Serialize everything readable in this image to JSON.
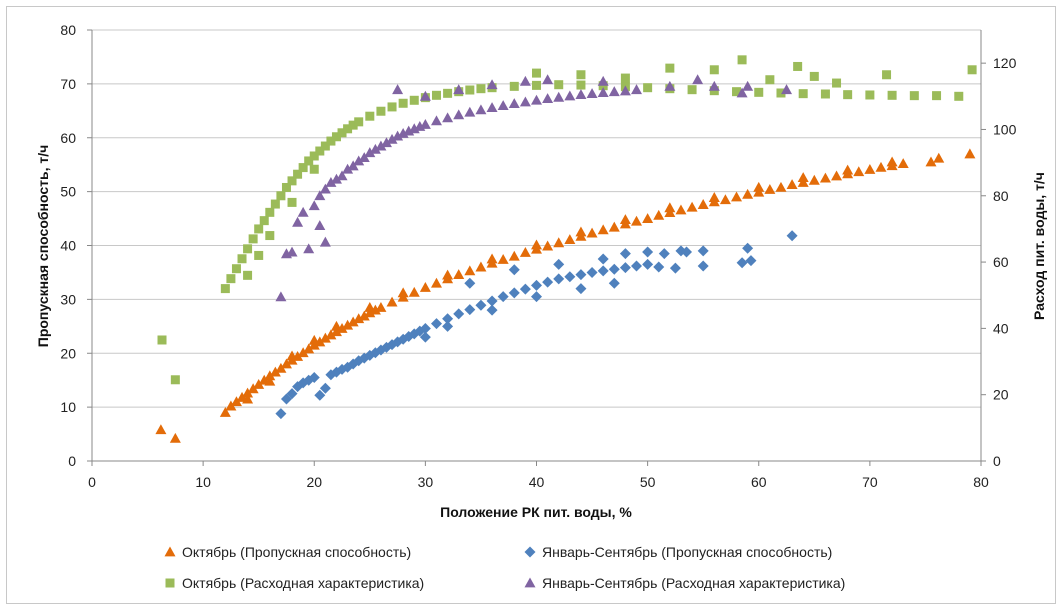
{
  "chart_data": {
    "type": "scatter",
    "xlabel": "Положение РК пит. воды, %",
    "ylabel": "Пропускная способность, т/ч",
    "y2label": "Расход пит. воды, т/ч",
    "xlim": [
      0,
      80
    ],
    "ylim": [
      0,
      80
    ],
    "y2lim": [
      0,
      130
    ],
    "x_ticks": [
      "0",
      "10",
      "20",
      "30",
      "40",
      "50",
      "60",
      "70",
      "80"
    ],
    "y_ticks": [
      "0",
      "10",
      "20",
      "30",
      "40",
      "50",
      "60",
      "70",
      "80"
    ],
    "y2_ticks": [
      "0",
      "20",
      "40",
      "60",
      "80",
      "100",
      "120"
    ],
    "grid": "horizontal",
    "legend_position": "bottom",
    "series": [
      {
        "name": "Октябрь (Пропускная способность)",
        "axis": "left",
        "marker": "triangle",
        "color": "#E36C09",
        "points": [
          [
            6.2,
            5.8
          ],
          [
            7.5,
            4.2
          ],
          [
            12.0,
            9.0
          ],
          [
            12.5,
            10.2
          ],
          [
            13.0,
            11.0
          ],
          [
            13.5,
            11.8
          ],
          [
            14.0,
            12.6
          ],
          [
            14.5,
            13.4
          ],
          [
            15.0,
            14.2
          ],
          [
            15.5,
            15.0
          ],
          [
            16.0,
            15.8
          ],
          [
            16.5,
            16.5
          ],
          [
            17.0,
            17.2
          ],
          [
            17.5,
            18.0
          ],
          [
            18.0,
            18.7
          ],
          [
            18.5,
            19.4
          ],
          [
            19.0,
            20.1
          ],
          [
            19.5,
            20.8
          ],
          [
            20.0,
            21.5
          ],
          [
            20.5,
            22.1
          ],
          [
            21.0,
            22.8
          ],
          [
            21.5,
            23.4
          ],
          [
            22.0,
            24.0
          ],
          [
            22.5,
            24.6
          ],
          [
            23.0,
            25.2
          ],
          [
            23.5,
            25.8
          ],
          [
            24.0,
            26.4
          ],
          [
            24.5,
            26.9
          ],
          [
            25.0,
            27.5
          ],
          [
            25.5,
            28.0
          ],
          [
            26.0,
            28.5
          ],
          [
            27.0,
            29.5
          ],
          [
            28.0,
            30.4
          ],
          [
            29.0,
            31.3
          ],
          [
            30.0,
            32.2
          ],
          [
            31.0,
            33.0
          ],
          [
            32.0,
            33.8
          ],
          [
            33.0,
            34.6
          ],
          [
            34.0,
            35.3
          ],
          [
            35.0,
            36.0
          ],
          [
            36.0,
            36.7
          ],
          [
            37.0,
            37.4
          ],
          [
            38.0,
            38.0
          ],
          [
            39.0,
            38.7
          ],
          [
            40.0,
            39.3
          ],
          [
            41.0,
            39.9
          ],
          [
            42.0,
            40.5
          ],
          [
            43.0,
            41.1
          ],
          [
            44.0,
            41.7
          ],
          [
            45.0,
            42.3
          ],
          [
            46.0,
            42.9
          ],
          [
            47.0,
            43.4
          ],
          [
            48.0,
            44.0
          ],
          [
            49.0,
            44.5
          ],
          [
            50.0,
            45.0
          ],
          [
            51.0,
            45.6
          ],
          [
            52.0,
            46.1
          ],
          [
            53.0,
            46.6
          ],
          [
            54.0,
            47.1
          ],
          [
            55.0,
            47.6
          ],
          [
            56.0,
            48.1
          ],
          [
            57.0,
            48.5
          ],
          [
            58.0,
            49.0
          ],
          [
            59.0,
            49.5
          ],
          [
            60.0,
            49.9
          ],
          [
            61.0,
            50.4
          ],
          [
            62.0,
            50.8
          ],
          [
            63.0,
            51.3
          ],
          [
            64.0,
            51.7
          ],
          [
            65.0,
            52.1
          ],
          [
            66.0,
            52.5
          ],
          [
            67.0,
            52.9
          ],
          [
            68.0,
            53.3
          ],
          [
            69.0,
            53.7
          ],
          [
            70.0,
            54.1
          ],
          [
            71.0,
            54.5
          ],
          [
            72.0,
            54.8
          ],
          [
            73.0,
            55.2
          ],
          [
            75.5,
            55.5
          ],
          [
            76.2,
            56.2
          ],
          [
            79.0,
            57.0
          ],
          [
            14.0,
            11.5
          ],
          [
            16.0,
            14.8
          ],
          [
            18.0,
            19.5
          ],
          [
            20.0,
            22.4
          ],
          [
            22.0,
            25.0
          ],
          [
            25.0,
            28.5
          ],
          [
            28.0,
            31.2
          ],
          [
            32.0,
            34.5
          ],
          [
            36.0,
            37.5
          ],
          [
            40.0,
            40.1
          ],
          [
            44.0,
            42.5
          ],
          [
            48.0,
            44.8
          ],
          [
            52.0,
            47.0
          ],
          [
            56.0,
            48.9
          ],
          [
            60.0,
            50.8
          ],
          [
            64.0,
            52.6
          ],
          [
            68.0,
            54.0
          ],
          [
            72.0,
            55.5
          ]
        ]
      },
      {
        "name": "Январь-Сентябрь (Пропускная способность)",
        "axis": "left",
        "marker": "diamond",
        "color": "#4F81BD",
        "points": [
          [
            17.0,
            8.8
          ],
          [
            17.5,
            11.5
          ],
          [
            18.0,
            12.5
          ],
          [
            18.5,
            13.8
          ],
          [
            19.0,
            14.5
          ],
          [
            19.5,
            15.0
          ],
          [
            20.0,
            15.5
          ],
          [
            20.5,
            12.2
          ],
          [
            21.0,
            13.5
          ],
          [
            21.5,
            16.0
          ],
          [
            22.0,
            16.5
          ],
          [
            22.5,
            17.0
          ],
          [
            23.0,
            17.4
          ],
          [
            23.5,
            18.0
          ],
          [
            24.0,
            18.6
          ],
          [
            24.5,
            19.1
          ],
          [
            25.0,
            19.6
          ],
          [
            25.5,
            20.1
          ],
          [
            26.0,
            20.6
          ],
          [
            26.5,
            21.1
          ],
          [
            27.0,
            21.6
          ],
          [
            27.5,
            22.1
          ],
          [
            28.0,
            22.6
          ],
          [
            28.5,
            23.1
          ],
          [
            29.0,
            23.6
          ],
          [
            29.5,
            24.1
          ],
          [
            30.0,
            24.6
          ],
          [
            31.0,
            25.5
          ],
          [
            32.0,
            26.4
          ],
          [
            33.0,
            27.3
          ],
          [
            34.0,
            28.1
          ],
          [
            35.0,
            28.9
          ],
          [
            36.0,
            29.7
          ],
          [
            37.0,
            30.5
          ],
          [
            38.0,
            31.2
          ],
          [
            39.0,
            31.9
          ],
          [
            40.0,
            32.6
          ],
          [
            41.0,
            33.2
          ],
          [
            42.0,
            33.8
          ],
          [
            43.0,
            34.2
          ],
          [
            44.0,
            34.6
          ],
          [
            45.0,
            35.0
          ],
          [
            46.0,
            35.3
          ],
          [
            47.0,
            35.6
          ],
          [
            48.0,
            35.9
          ],
          [
            49.0,
            36.2
          ],
          [
            50.0,
            36.5
          ],
          [
            34.0,
            33.0
          ],
          [
            38.0,
            35.5
          ],
          [
            42.0,
            36.5
          ],
          [
            46.0,
            37.5
          ],
          [
            48.0,
            38.5
          ],
          [
            50.0,
            38.8
          ],
          [
            51.0,
            36.0
          ],
          [
            51.5,
            38.5
          ],
          [
            52.5,
            35.8
          ],
          [
            53.0,
            39.0
          ],
          [
            53.5,
            38.8
          ],
          [
            55.0,
            39.0
          ],
          [
            55.0,
            36.2
          ],
          [
            58.5,
            36.8
          ],
          [
            59.0,
            39.5
          ],
          [
            59.3,
            37.2
          ],
          [
            63.0,
            41.8
          ],
          [
            30.0,
            23.0
          ],
          [
            32.0,
            25.0
          ],
          [
            36.0,
            28.0
          ],
          [
            40.0,
            30.5
          ],
          [
            44.0,
            32.0
          ],
          [
            47.0,
            33.0
          ]
        ]
      },
      {
        "name": "Октябрь (Расходная характеристика)",
        "axis": "right",
        "marker": "square",
        "color": "#9BBB59",
        "points": [
          [
            6.3,
            36.5
          ],
          [
            7.5,
            24.5
          ],
          [
            12.0,
            52.0
          ],
          [
            12.5,
            55.0
          ],
          [
            13.0,
            58.0
          ],
          [
            13.5,
            61.0
          ],
          [
            14.0,
            64.0
          ],
          [
            14.5,
            67.0
          ],
          [
            15.0,
            70.0
          ],
          [
            15.5,
            72.5
          ],
          [
            16.0,
            75.0
          ],
          [
            16.5,
            77.5
          ],
          [
            17.0,
            80.0
          ],
          [
            17.5,
            82.5
          ],
          [
            18.0,
            84.5
          ],
          [
            18.5,
            86.5
          ],
          [
            19.0,
            88.5
          ],
          [
            19.5,
            90.5
          ],
          [
            20.0,
            92.0
          ],
          [
            20.5,
            93.5
          ],
          [
            21.0,
            95.0
          ],
          [
            21.5,
            96.5
          ],
          [
            22.0,
            97.8
          ],
          [
            22.5,
            99.0
          ],
          [
            23.0,
            100.2
          ],
          [
            23.5,
            101.3
          ],
          [
            24.0,
            102.3
          ],
          [
            25.0,
            104.0
          ],
          [
            26.0,
            105.5
          ],
          [
            27.0,
            106.8
          ],
          [
            28.0,
            107.9
          ],
          [
            29.0,
            108.8
          ],
          [
            30.0,
            109.6
          ],
          [
            31.0,
            110.3
          ],
          [
            32.0,
            110.9
          ],
          [
            33.0,
            111.4
          ],
          [
            34.0,
            111.9
          ],
          [
            35.0,
            112.3
          ],
          [
            36.0,
            112.6
          ],
          [
            38.0,
            113.0
          ],
          [
            40.0,
            113.3
          ],
          [
            42.0,
            113.5
          ],
          [
            44.0,
            113.4
          ],
          [
            46.0,
            113.2
          ],
          [
            48.0,
            112.9
          ],
          [
            50.0,
            112.6
          ],
          [
            52.0,
            112.3
          ],
          [
            54.0,
            112.0
          ],
          [
            56.0,
            111.7
          ],
          [
            58.0,
            111.4
          ],
          [
            60.0,
            111.2
          ],
          [
            62.0,
            111.0
          ],
          [
            64.0,
            110.8
          ],
          [
            66.0,
            110.7
          ],
          [
            68.0,
            110.5
          ],
          [
            70.0,
            110.4
          ],
          [
            72.0,
            110.3
          ],
          [
            74.0,
            110.2
          ],
          [
            76.0,
            110.2
          ],
          [
            78.0,
            110.0
          ],
          [
            79.2,
            118.0
          ],
          [
            56.0,
            118.0
          ],
          [
            58.5,
            121.0
          ],
          [
            61.0,
            115.0
          ],
          [
            63.5,
            119.0
          ],
          [
            65.0,
            116.0
          ],
          [
            67.0,
            114.0
          ],
          [
            71.5,
            116.5
          ],
          [
            40.0,
            117.0
          ],
          [
            44.0,
            116.5
          ],
          [
            48.0,
            115.5
          ],
          [
            52.0,
            118.5
          ],
          [
            15.0,
            62.0
          ],
          [
            14.0,
            56.0
          ],
          [
            16.0,
            68.0
          ],
          [
            18.0,
            78.0
          ],
          [
            20.0,
            88.0
          ]
        ]
      },
      {
        "name": "Январь-Сентябрь (Расходная характеристика)",
        "axis": "right",
        "marker": "triangle",
        "color": "#8064A2",
        "points": [
          [
            17.0,
            49.5
          ],
          [
            17.5,
            62.5
          ],
          [
            18.0,
            63.0
          ],
          [
            18.5,
            72.0
          ],
          [
            19.0,
            75.0
          ],
          [
            19.5,
            64.0
          ],
          [
            20.0,
            77.0
          ],
          [
            20.5,
            71.0
          ],
          [
            20.5,
            80.0
          ],
          [
            21.0,
            82.0
          ],
          [
            21.0,
            66.0
          ],
          [
            21.5,
            84.0
          ],
          [
            22.0,
            85.0
          ],
          [
            22.5,
            86.0
          ],
          [
            23.0,
            88.0
          ],
          [
            23.5,
            89.0
          ],
          [
            24.0,
            90.5
          ],
          [
            24.5,
            91.5
          ],
          [
            25.0,
            93.0
          ],
          [
            25.5,
            94.0
          ],
          [
            26.0,
            95.0
          ],
          [
            26.5,
            96.0
          ],
          [
            27.0,
            97.0
          ],
          [
            27.5,
            98.0
          ],
          [
            28.0,
            98.8
          ],
          [
            28.5,
            99.5
          ],
          [
            29.0,
            100.2
          ],
          [
            29.5,
            100.9
          ],
          [
            30.0,
            101.5
          ],
          [
            31.0,
            102.6
          ],
          [
            32.0,
            103.5
          ],
          [
            33.0,
            104.4
          ],
          [
            34.0,
            105.2
          ],
          [
            35.0,
            105.9
          ],
          [
            36.0,
            106.6
          ],
          [
            37.0,
            107.2
          ],
          [
            38.0,
            107.8
          ],
          [
            39.0,
            108.3
          ],
          [
            40.0,
            108.8
          ],
          [
            41.0,
            109.3
          ],
          [
            42.0,
            109.7
          ],
          [
            43.0,
            110.1
          ],
          [
            44.0,
            110.5
          ],
          [
            45.0,
            110.8
          ],
          [
            46.0,
            111.1
          ],
          [
            47.0,
            111.4
          ],
          [
            48.0,
            111.6
          ],
          [
            27.5,
            112.0
          ],
          [
            30.0,
            110.0
          ],
          [
            33.0,
            112.0
          ],
          [
            36.0,
            113.5
          ],
          [
            39.0,
            114.5
          ],
          [
            41.0,
            115.0
          ],
          [
            46.0,
            114.5
          ],
          [
            49.0,
            112.0
          ],
          [
            52.0,
            113.0
          ],
          [
            54.5,
            115.0
          ],
          [
            56.0,
            113.0
          ],
          [
            58.5,
            111.0
          ],
          [
            59.0,
            113.0
          ],
          [
            62.5,
            112.0
          ]
        ]
      }
    ]
  }
}
